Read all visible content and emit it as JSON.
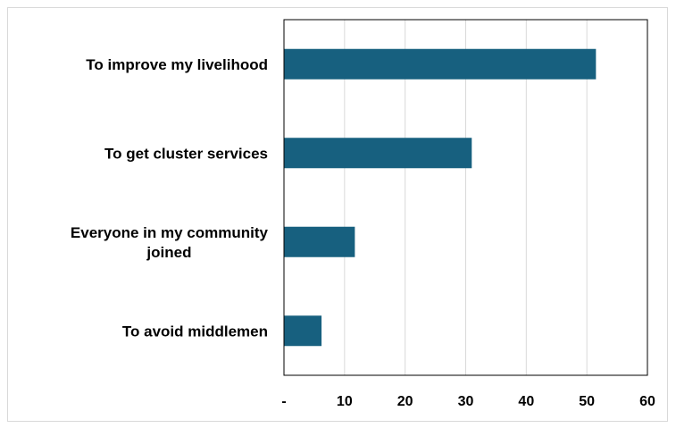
{
  "chart_data": {
    "type": "bar",
    "orientation": "horizontal",
    "categories": [
      "To improve my livelihood",
      "To get cluster services",
      "Everyone in my community joined",
      "To avoid middlemen"
    ],
    "category_label_lines": [
      [
        "To improve my livelihood"
      ],
      [
        "To get cluster services"
      ],
      [
        "Everyone in my community",
        "joined"
      ],
      [
        "To avoid middlemen"
      ]
    ],
    "values": [
      51.5,
      31,
      11.7,
      6.2
    ],
    "xlim": [
      0,
      60
    ],
    "x_ticks": [
      0,
      10,
      20,
      30,
      40,
      50,
      60
    ],
    "x_tick_labels": [
      "-",
      "10",
      "20",
      "30",
      "40",
      "50",
      "60"
    ],
    "title": "",
    "xlabel": "",
    "ylabel": "",
    "grid": "vertical",
    "legend": "none",
    "bar_color": "#17607f",
    "grid_color": "#d9d9d9"
  }
}
